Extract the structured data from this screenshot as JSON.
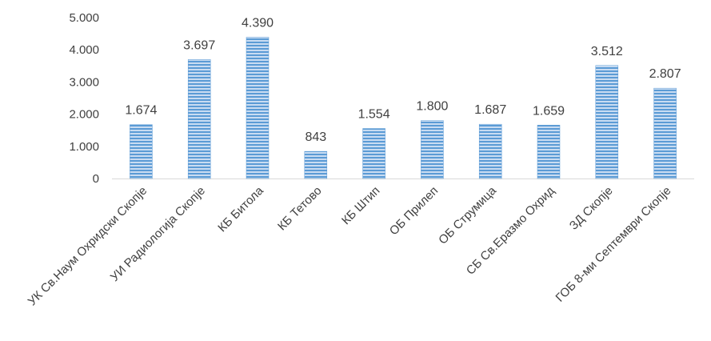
{
  "chart_data": {
    "type": "bar",
    "title": "",
    "xlabel": "",
    "ylabel": "",
    "categories": [
      "УК Св.Наум Охридски Скопје",
      "УИ Радиологија Скопје",
      "КБ Битола",
      "КБ Тетово",
      "КБ Штип",
      "ОБ Прилеп",
      "ОБ Струмица",
      "СБ Св.Еразмо Охрид",
      "ЗД Скопје",
      "ГОБ 8-ми Септември Скопје"
    ],
    "values": [
      1674,
      3697,
      4390,
      843,
      1554,
      1800,
      1687,
      1659,
      3512,
      2807
    ],
    "value_labels": [
      "1.674",
      "3.697",
      "4.390",
      "843",
      "1.554",
      "1.800",
      "1.687",
      "1.659",
      "3.512",
      "2.807"
    ],
    "ylim": [
      0,
      5000
    ],
    "yticks": [
      0,
      1000,
      2000,
      3000,
      4000,
      5000
    ],
    "ytick_labels": [
      "0",
      "1.000",
      "2.000",
      "3.000",
      "4.000",
      "5.000"
    ],
    "grid": false,
    "legend": "none",
    "colors": {
      "bar_light": "#c9dcf2",
      "bar_dark": "#5b9bd5",
      "axis": "#d9d9d9",
      "text": "#404040"
    }
  }
}
